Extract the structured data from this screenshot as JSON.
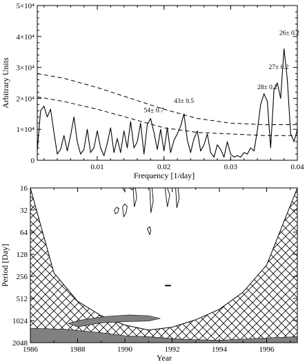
{
  "chart_data": [
    {
      "type": "line",
      "xlabel": "Frequency [1/day]",
      "ylabel": "Arbitrary Units",
      "xlim": [
        0.001,
        0.04
      ],
      "ylim": [
        0,
        50000
      ],
      "x_ticks": [
        {
          "value": 0.01,
          "label": "0.01"
        },
        {
          "value": 0.02,
          "label": "0.02"
        },
        {
          "value": 0.03,
          "label": "0.03"
        },
        {
          "value": 0.04,
          "label": "0.04"
        }
      ],
      "y_ticks": [
        {
          "value": 0,
          "label": "0"
        },
        {
          "value": 10000,
          "label": "1×10⁴"
        },
        {
          "value": 20000,
          "label": "2×10⁴"
        },
        {
          "value": 30000,
          "label": "3×10⁴"
        },
        {
          "value": 40000,
          "label": "4×10⁴"
        },
        {
          "value": 50000,
          "label": "5×10⁴"
        }
      ],
      "grid": false,
      "series": [
        {
          "style": "solid",
          "x": [
            0.001,
            0.0015,
            0.002,
            0.0025,
            0.003,
            0.0035,
            0.004,
            0.0045,
            0.005,
            0.0055,
            0.006,
            0.0065,
            0.007,
            0.0075,
            0.008,
            0.0085,
            0.009,
            0.0095,
            0.01,
            0.0105,
            0.011,
            0.0115,
            0.012,
            0.0125,
            0.013,
            0.0135,
            0.014,
            0.0145,
            0.015,
            0.0155,
            0.016,
            0.0165,
            0.017,
            0.0175,
            0.018,
            0.0185,
            0.019,
            0.0195,
            0.02,
            0.0205,
            0.021,
            0.0215,
            0.022,
            0.0225,
            0.023,
            0.0235,
            0.024,
            0.0245,
            0.025,
            0.0255,
            0.026,
            0.0265,
            0.027,
            0.0275,
            0.028,
            0.0285,
            0.029,
            0.0295,
            0.03,
            0.0305,
            0.031,
            0.0315,
            0.032,
            0.0325,
            0.033,
            0.0335,
            0.034,
            0.0345,
            0.035,
            0.0355,
            0.036,
            0.0365,
            0.037,
            0.0375,
            0.038,
            0.0385,
            0.039,
            0.0395,
            0.04
          ],
          "y": [
            3000,
            16000,
            17500,
            14000,
            16500,
            9000,
            2000,
            3500,
            8000,
            3000,
            8000,
            14000,
            6000,
            2000,
            3500,
            10000,
            2500,
            4000,
            9500,
            4000,
            1500,
            5500,
            10500,
            2500,
            7000,
            2500,
            9500,
            4000,
            12500,
            4000,
            6000,
            12000,
            2000,
            11500,
            13500,
            9000,
            3500,
            10000,
            3000,
            10500,
            2500,
            6500,
            8500,
            11000,
            15000,
            6500,
            2500,
            7000,
            9500,
            3000,
            5000,
            8500,
            2500,
            1000,
            5000,
            3500,
            1000,
            6000,
            2000,
            1000,
            1500,
            1000,
            2500,
            2000,
            4000,
            3000,
            9500,
            18000,
            21500,
            19000,
            4000,
            23000,
            25000,
            20000,
            36000,
            26000,
            8500,
            6000,
            10000
          ]
        },
        {
          "style": "dashed",
          "x": [
            0.001,
            0.005,
            0.01,
            0.015,
            0.02,
            0.025,
            0.03,
            0.035,
            0.04
          ],
          "y": [
            28000,
            26500,
            23500,
            20000,
            16500,
            13500,
            12000,
            11500,
            11500
          ]
        },
        {
          "style": "dashed",
          "x": [
            0.001,
            0.005,
            0.01,
            0.015,
            0.02,
            0.025,
            0.03,
            0.035,
            0.04
          ],
          "y": [
            20500,
            19000,
            16500,
            13500,
            10500,
            9000,
            8500,
            8000,
            8000
          ]
        }
      ],
      "annotations": [
        {
          "text": "54± 0.7",
          "x": 0.0185,
          "y": 15500
        },
        {
          "text": "43± 0.5",
          "x": 0.023,
          "y": 18500
        },
        {
          "text": "28± 0.2",
          "x": 0.0355,
          "y": 23000
        },
        {
          "text": "27± 0.2",
          "x": 0.0372,
          "y": 29500
        },
        {
          "text": "26± 0.2",
          "x": 0.0388,
          "y": 40500
        }
      ]
    },
    {
      "type": "heatmap",
      "xlabel": "Year",
      "ylabel": "Period [Day]",
      "xlim": [
        1986,
        1997.3
      ],
      "ylim": [
        16,
        2048
      ],
      "y_scale": "log2",
      "y_reversed": true,
      "x_ticks": [
        {
          "value": 1986,
          "label": "1986"
        },
        {
          "value": 1988,
          "label": "1988"
        },
        {
          "value": 1990,
          "label": "1990"
        },
        {
          "value": 1992,
          "label": "1992"
        },
        {
          "value": 1994,
          "label": "1994"
        },
        {
          "value": 1996,
          "label": "1996"
        }
      ],
      "y_ticks": [
        {
          "value": 16,
          "label": "16"
        },
        {
          "value": 32,
          "label": "32"
        },
        {
          "value": 64,
          "label": "64"
        },
        {
          "value": 128,
          "label": "128"
        },
        {
          "value": 256,
          "label": "256"
        },
        {
          "value": 512,
          "label": "512"
        },
        {
          "value": 1024,
          "label": "1024"
        },
        {
          "value": 2048,
          "label": "2048"
        }
      ],
      "cone_of_influence": {
        "x": [
          1986,
          1987,
          1988,
          1989,
          1990,
          1991,
          1992,
          1993,
          1994,
          1995,
          1996,
          1997.3
        ],
        "y": [
          16,
          230,
          560,
          880,
          1180,
          1380,
          1260,
          1000,
          720,
          420,
          180,
          16
        ]
      },
      "significant_regions": [
        {
          "x": [
            1987.6,
            1988.2,
            1989.2,
            1990.2,
            1991.0,
            1991.5,
            1991.0,
            1990.0,
            1989.0,
            1988.0
          ],
          "y": [
            1120,
            1000,
            900,
            860,
            880,
            960,
            1040,
            1060,
            1100,
            1250
          ]
        },
        {
          "x": [
            1986,
            1987.5,
            1989.0,
            1990.0,
            1991.0,
            1992.5,
            1994.0,
            1995.5,
            1997.3,
            1997.3,
            1986
          ],
          "y": [
            1300,
            1350,
            1500,
            1650,
            1700,
            1850,
            1900,
            1800,
            1700,
            2048,
            2048
          ]
        }
      ],
      "contour_lines": [
        {
          "x": [
            1989.9,
            1990.0,
            1990.0
          ],
          "y": [
            16,
            18,
            16
          ]
        },
        {
          "x": [
            1990.2,
            1990.3,
            1990.4
          ],
          "y": [
            16,
            17,
            16
          ]
        },
        {
          "x": [
            1989.55,
            1989.65,
            1989.75,
            1989.7,
            1989.6,
            1989.55
          ],
          "y": [
            32,
            29.5,
            30.5,
            34.5,
            36,
            32
          ]
        },
        {
          "x": [
            1989.9,
            1990.0,
            1990.1,
            1990.05,
            1989.95,
            1989.9
          ],
          "y": [
            29,
            26.5,
            28.5,
            35,
            39.5,
            29
          ]
        },
        {
          "x": [
            1990.35,
            1990.45,
            1990.5,
            1990.4,
            1990.35
          ],
          "y": [
            16,
            16,
            22,
            29,
            16
          ]
        },
        {
          "x": [
            1991.05,
            1991.15,
            1991.2,
            1991.1,
            1991.05
          ],
          "y": [
            16,
            16,
            24,
            35,
            16
          ]
        },
        {
          "x": [
            1991.7,
            1991.8,
            1991.9,
            1991.8,
            1991.7
          ],
          "y": [
            16,
            16,
            20,
            29,
            16
          ]
        },
        {
          "x": [
            1992.15,
            1992.25,
            1992.3,
            1992.2,
            1992.15
          ],
          "y": [
            16,
            16,
            22,
            30,
            16
          ]
        },
        {
          "x": [
            1990.95,
            1991.05,
            1991.1,
            1991.05,
            1990.95
          ],
          "y": [
            57,
            54,
            61,
            69,
            57
          ]
        },
        {
          "x": [
            1991.7,
            1991.95
          ],
          "y": [
            342,
            342
          ]
        }
      ]
    }
  ]
}
